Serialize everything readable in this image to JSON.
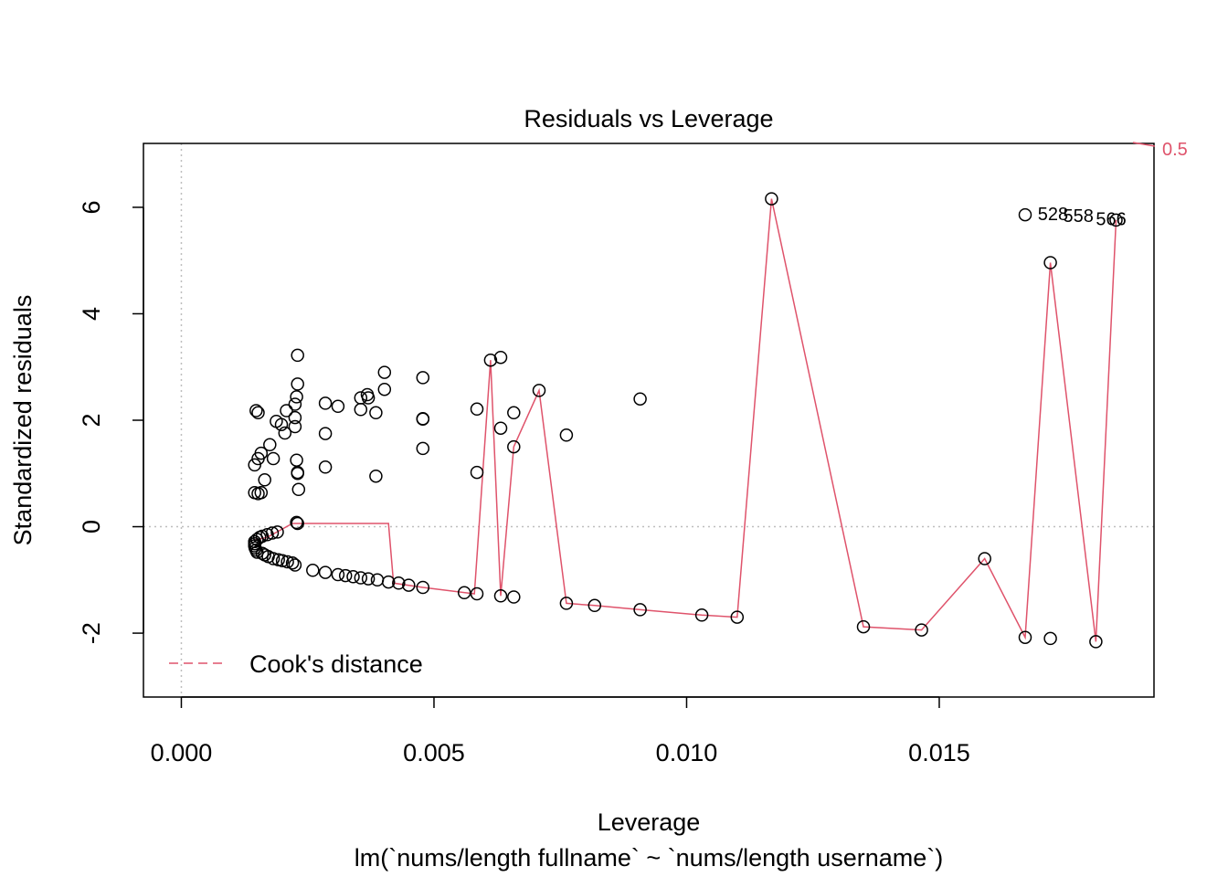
{
  "chart_data": {
    "type": "scatter",
    "title": "Residuals vs Leverage",
    "subtitle": "lm(`nums/length fullname` ~ `nums/length username`)",
    "xlabel": "Leverage",
    "ylabel": "Standardized residuals",
    "xlim": [
      -0.00075,
      0.01925
    ],
    "ylim": [
      -3.2,
      7.2
    ],
    "x_ticks": [
      0.0,
      0.005,
      0.01,
      0.015
    ],
    "x_tick_labels": [
      "0.000",
      "0.005",
      "0.010",
      "0.015"
    ],
    "y_ticks": [
      -2,
      0,
      2,
      4,
      6
    ],
    "y_tick_labels": [
      "-2",
      "0",
      "2",
      "4",
      "6"
    ],
    "grid": false,
    "reference_lines": {
      "x": 0,
      "y": 0
    },
    "legend": {
      "position": "bottom-left",
      "entries": [
        {
          "label": "Cook's distance",
          "color": "#DF536B",
          "style": "dashed"
        }
      ]
    },
    "cooks_contour_label": "0.5",
    "colors": {
      "points": "#000000",
      "smooth": "#DF536B",
      "reference": "#BEBEBE"
    },
    "point_labels": [
      {
        "text": "528",
        "x": 0.01695,
        "y": 5.88
      },
      {
        "text": "558",
        "x": 0.01745,
        "y": 5.84
      },
      {
        "text": "566",
        "x": 0.0181,
        "y": 5.78
      }
    ],
    "points": [
      [
        0.00145,
        -0.28
      ],
      [
        0.00145,
        -0.32
      ],
      [
        0.00145,
        -0.36
      ],
      [
        0.00146,
        -0.4
      ],
      [
        0.00148,
        -0.44
      ],
      [
        0.0015,
        -0.24
      ],
      [
        0.0015,
        -0.48
      ],
      [
        0.00155,
        -0.2
      ],
      [
        0.0016,
        -0.5
      ],
      [
        0.0016,
        -0.18
      ],
      [
        0.00165,
        -0.53
      ],
      [
        0.0017,
        -0.15
      ],
      [
        0.00172,
        -0.56
      ],
      [
        0.0018,
        -0.12
      ],
      [
        0.00182,
        -0.6
      ],
      [
        0.0019,
        -0.1
      ],
      [
        0.00192,
        -0.62
      ],
      [
        0.002,
        -0.64
      ],
      [
        0.0021,
        -0.66
      ],
      [
        0.0022,
        -0.68
      ],
      [
        0.00225,
        -0.72
      ],
      [
        0.00228,
        0.08
      ],
      [
        0.0023,
        0.06
      ],
      [
        0.00145,
        0.64
      ],
      [
        0.00152,
        0.62
      ],
      [
        0.00158,
        0.64
      ],
      [
        0.00165,
        0.88
      ],
      [
        0.00145,
        1.16
      ],
      [
        0.00152,
        1.28
      ],
      [
        0.00158,
        1.38
      ],
      [
        0.00175,
        1.54
      ],
      [
        0.00182,
        1.28
      ],
      [
        0.00148,
        2.18
      ],
      [
        0.00152,
        2.14
      ],
      [
        0.00188,
        1.98
      ],
      [
        0.00198,
        1.92
      ],
      [
        0.00205,
        1.76
      ],
      [
        0.00208,
        2.18
      ],
      [
        0.00225,
        2.3
      ],
      [
        0.00225,
        2.05
      ],
      [
        0.00225,
        1.88
      ],
      [
        0.00228,
        1.25
      ],
      [
        0.0023,
        1.02
      ],
      [
        0.0023,
        1.0
      ],
      [
        0.00232,
        0.7
      ],
      [
        0.00228,
        2.44
      ],
      [
        0.0023,
        2.68
      ],
      [
        0.0023,
        3.22
      ],
      [
        0.00285,
        1.75
      ],
      [
        0.00285,
        1.12
      ],
      [
        0.00285,
        2.32
      ],
      [
        0.0031,
        2.26
      ],
      [
        0.00355,
        2.42
      ],
      [
        0.00355,
        2.2
      ],
      [
        0.00368,
        2.48
      ],
      [
        0.0037,
        2.42
      ],
      [
        0.00385,
        2.14
      ],
      [
        0.00385,
        0.95
      ],
      [
        0.00402,
        2.9
      ],
      [
        0.00402,
        2.58
      ],
      [
        0.00478,
        2.8
      ],
      [
        0.00478,
        2.02
      ],
      [
        0.00478,
        1.47
      ],
      [
        0.00478,
        2.03
      ],
      [
        0.0026,
        -0.82
      ],
      [
        0.00285,
        -0.86
      ],
      [
        0.0031,
        -0.9
      ],
      [
        0.00325,
        -0.92
      ],
      [
        0.0034,
        -0.94
      ],
      [
        0.00355,
        -0.96
      ],
      [
        0.0037,
        -0.98
      ],
      [
        0.00388,
        -1.0
      ],
      [
        0.0041,
        -1.04
      ],
      [
        0.0043,
        -1.06
      ],
      [
        0.0045,
        -1.1
      ],
      [
        0.00478,
        -1.14
      ],
      [
        0.0056,
        -1.24
      ],
      [
        0.00585,
        -1.26
      ],
      [
        0.00585,
        2.21
      ],
      [
        0.00585,
        1.02
      ],
      [
        0.00612,
        3.13
      ],
      [
        0.00632,
        3.18
      ],
      [
        0.00632,
        1.85
      ],
      [
        0.00632,
        -1.3
      ],
      [
        0.00658,
        2.14
      ],
      [
        0.00658,
        1.5
      ],
      [
        0.00658,
        -1.32
      ],
      [
        0.00708,
        2.56
      ],
      [
        0.00762,
        1.72
      ],
      [
        0.00762,
        -1.44
      ],
      [
        0.00818,
        -1.48
      ],
      [
        0.00908,
        -1.56
      ],
      [
        0.00908,
        2.4
      ],
      [
        0.0103,
        -1.66
      ],
      [
        0.011,
        -1.7
      ],
      [
        0.01168,
        6.16
      ],
      [
        0.0135,
        -1.88
      ],
      [
        0.01465,
        -1.94
      ],
      [
        0.0159,
        -0.6
      ],
      [
        0.0167,
        -2.08
      ],
      [
        0.0167,
        5.86
      ],
      [
        0.0172,
        -2.1
      ],
      [
        0.0172,
        4.96
      ],
      [
        0.0181,
        -2.16
      ],
      [
        0.0185,
        5.76
      ]
    ],
    "smooth_line": [
      [
        0.00145,
        -0.25
      ],
      [
        0.0017,
        -0.2
      ],
      [
        0.0022,
        0.06
      ],
      [
        0.0041,
        0.06
      ],
      [
        0.0042,
        -1.06
      ],
      [
        0.00478,
        -1.14
      ],
      [
        0.0058,
        -1.26
      ],
      [
        0.00612,
        3.13
      ],
      [
        0.00632,
        -1.3
      ],
      [
        0.00658,
        1.5
      ],
      [
        0.00708,
        2.56
      ],
      [
        0.00762,
        -1.44
      ],
      [
        0.00818,
        -1.48
      ],
      [
        0.00908,
        -1.56
      ],
      [
        0.0103,
        -1.66
      ],
      [
        0.011,
        -1.7
      ],
      [
        0.01168,
        6.16
      ],
      [
        0.0135,
        -1.88
      ],
      [
        0.01465,
        -1.94
      ],
      [
        0.0159,
        -0.6
      ],
      [
        0.0167,
        -2.08
      ],
      [
        0.0172,
        4.96
      ],
      [
        0.0181,
        -2.16
      ],
      [
        0.0185,
        5.76
      ]
    ]
  }
}
